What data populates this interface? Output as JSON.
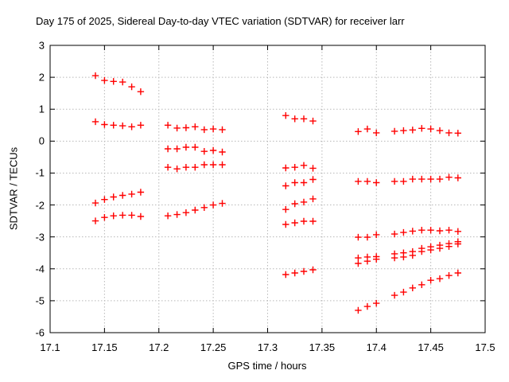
{
  "title": "Day 175 of 2025, Sidereal Day-to-day VTEC variation (SDTVAR) for receiver larr",
  "chart_data": {
    "type": "scatter",
    "title": "Day 175 of 2025, Sidereal Day-to-day VTEC variation (SDTVAR) for receiver larr",
    "xlabel": "GPS time / hours",
    "ylabel": "SDTVAR / TECUs",
    "xlim": [
      17.1,
      17.5
    ],
    "ylim": [
      -6,
      3
    ],
    "x_ticks": [
      17.1,
      17.15,
      17.2,
      17.25,
      17.3,
      17.35,
      17.4,
      17.45,
      17.5
    ],
    "x_tick_labels": [
      "17.1",
      "17.15",
      "17.2",
      "17.25",
      "17.3",
      "17.35",
      "17.4",
      "17.45",
      "17.5"
    ],
    "y_ticks": [
      3,
      2,
      1,
      0,
      -1,
      -2,
      -3,
      -4,
      -5,
      -6
    ],
    "y_tick_labels": [
      "3",
      "2",
      "1",
      "0",
      "-1",
      "-2",
      "-3",
      "-4",
      "-5",
      "-6"
    ],
    "grid": true,
    "legend": false,
    "marker": "plus",
    "marker_color": "#ff0000",
    "grid_color": "#b8b8b8",
    "border_color": "#000000",
    "clusters": [
      {
        "x": [
          17.1417,
          17.15,
          17.1583,
          17.1667,
          17.175,
          17.1833
        ],
        "rows": [
          [
            2.05,
            1.9,
            1.87,
            1.85,
            1.7,
            1.55
          ],
          [
            0.61,
            0.52,
            0.5,
            0.48,
            0.45,
            0.5
          ],
          [
            -1.94,
            -1.83,
            -1.75,
            -1.7,
            -1.66,
            -1.6
          ],
          [
            -2.5,
            -2.39,
            -2.34,
            -2.32,
            -2.32,
            -2.36
          ]
        ]
      },
      {
        "x": [
          17.2083,
          17.2167,
          17.225,
          17.2333,
          17.2417,
          17.25,
          17.2583
        ],
        "rows": [
          [
            0.5,
            0.41,
            0.42,
            0.45,
            0.36,
            0.38,
            0.36
          ],
          [
            -0.24,
            -0.24,
            -0.19,
            -0.19,
            -0.32,
            -0.29,
            -0.34
          ],
          [
            -0.82,
            -0.87,
            -0.82,
            -0.82,
            -0.74,
            -0.74,
            -0.74
          ],
          [
            -2.34,
            -2.3,
            -2.24,
            -2.16,
            -2.08,
            -2.0,
            -1.95
          ]
        ]
      },
      {
        "x": [
          17.3167,
          17.325,
          17.3333,
          17.3417
        ],
        "rows": [
          [
            0.8,
            0.7,
            0.7,
            0.63
          ],
          [
            -0.84,
            -0.82,
            -0.76,
            -0.85
          ],
          [
            -1.4,
            -1.3,
            -1.3,
            -1.2
          ],
          [
            -2.14,
            -1.96,
            -1.91,
            -1.81
          ],
          [
            -2.61,
            -2.56,
            -2.51,
            -2.51
          ],
          [
            -4.18,
            -4.13,
            -4.08,
            -4.03
          ]
        ]
      },
      {
        "x": [
          17.3833,
          17.3917,
          17.4,
          17.4167,
          17.425,
          17.4333,
          17.4417,
          17.45,
          17.4583,
          17.4667,
          17.475
        ],
        "rows": [
          [
            0.3,
            0.38,
            0.26,
            0.31,
            0.33,
            0.35,
            0.4,
            0.38,
            0.33,
            0.26,
            0.25
          ],
          [
            -1.26,
            -1.26,
            -1.3,
            -1.26,
            -1.26,
            -1.19,
            -1.19,
            -1.19,
            -1.19,
            -1.13,
            -1.15
          ],
          [
            -3.01,
            -3.01,
            -2.93,
            -2.91,
            -2.86,
            -2.82,
            -2.79,
            -2.79,
            -2.81,
            -2.79,
            -2.83
          ],
          [
            -3.66,
            -3.63,
            -3.62,
            -3.53,
            -3.5,
            -3.46,
            -3.36,
            -3.31,
            -3.26,
            -3.21,
            -3.15
          ],
          [
            -3.83,
            -3.76,
            -3.7,
            -3.66,
            -3.63,
            -3.58,
            -3.46,
            -3.41,
            -3.36,
            -3.3,
            -3.22
          ],
          [
            -5.3,
            -5.18,
            -5.08,
            -4.83,
            -4.73,
            -4.6,
            -4.5,
            -4.36,
            -4.31,
            -4.21,
            -4.13
          ]
        ]
      }
    ]
  }
}
